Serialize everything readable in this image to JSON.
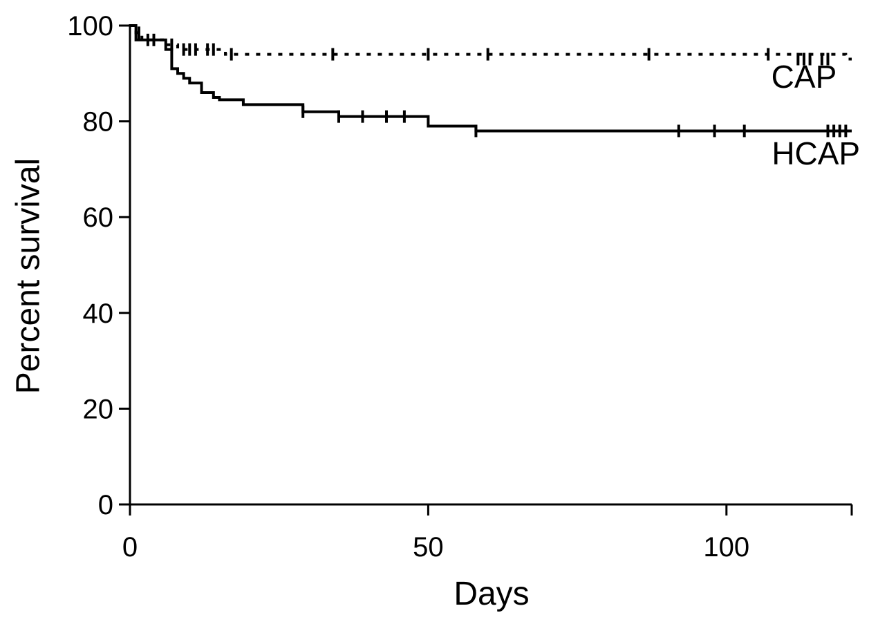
{
  "chart_data": {
    "type": "line",
    "subtype": "kaplan-meier step survival curve",
    "xlabel": "Days",
    "ylabel": "Percent survival",
    "xlim": [
      0,
      121
    ],
    "ylim": [
      0,
      100
    ],
    "xticks": [
      0,
      50,
      100
    ],
    "yticks": [
      0,
      20,
      40,
      60,
      80,
      100
    ],
    "grid": false,
    "legend": "none",
    "series": [
      {
        "name": "CAP",
        "line_style": "dotted",
        "color": "#000000",
        "steps": [
          [
            0,
            100
          ],
          [
            1,
            98.5
          ],
          [
            2,
            97
          ],
          [
            6,
            96
          ],
          [
            8,
            95
          ],
          [
            16,
            94
          ],
          [
            120,
            93
          ]
        ],
        "censored": [
          [
            1.5,
            98.5
          ],
          [
            3,
            97
          ],
          [
            4,
            97
          ],
          [
            7,
            96
          ],
          [
            9,
            95
          ],
          [
            10,
            95
          ],
          [
            11,
            95
          ],
          [
            13,
            95
          ],
          [
            14,
            95
          ],
          [
            17,
            94
          ],
          [
            34,
            94
          ],
          [
            50,
            94
          ],
          [
            60,
            94
          ],
          [
            87,
            94
          ],
          [
            107,
            94
          ],
          [
            112,
            93
          ],
          [
            113,
            93
          ],
          [
            114,
            93
          ],
          [
            116,
            93
          ],
          [
            117,
            93
          ]
        ]
      },
      {
        "name": "HCAP",
        "line_style": "solid",
        "color": "#000000",
        "steps": [
          [
            0,
            100
          ],
          [
            1,
            97
          ],
          [
            6,
            95
          ],
          [
            7,
            91
          ],
          [
            8,
            90
          ],
          [
            9,
            89
          ],
          [
            10,
            88
          ],
          [
            12,
            86
          ],
          [
            14,
            85
          ],
          [
            15,
            84.5
          ],
          [
            19,
            83.5
          ],
          [
            29,
            82
          ],
          [
            35,
            81
          ],
          [
            50,
            79
          ],
          [
            58,
            78
          ],
          [
            121,
            78
          ]
        ],
        "censored": [
          [
            29,
            82
          ],
          [
            35,
            81
          ],
          [
            39,
            81
          ],
          [
            43,
            81
          ],
          [
            46,
            81
          ],
          [
            58,
            78
          ],
          [
            92,
            78
          ],
          [
            98,
            78
          ],
          [
            103,
            78
          ],
          [
            117,
            78
          ],
          [
            118,
            78
          ],
          [
            119,
            78
          ],
          [
            120,
            78
          ]
        ]
      }
    ],
    "annotations": [
      {
        "text": "CAP",
        "x": 113,
        "y": 87
      },
      {
        "text": "HCAP",
        "x": 115,
        "y": 71
      }
    ]
  }
}
